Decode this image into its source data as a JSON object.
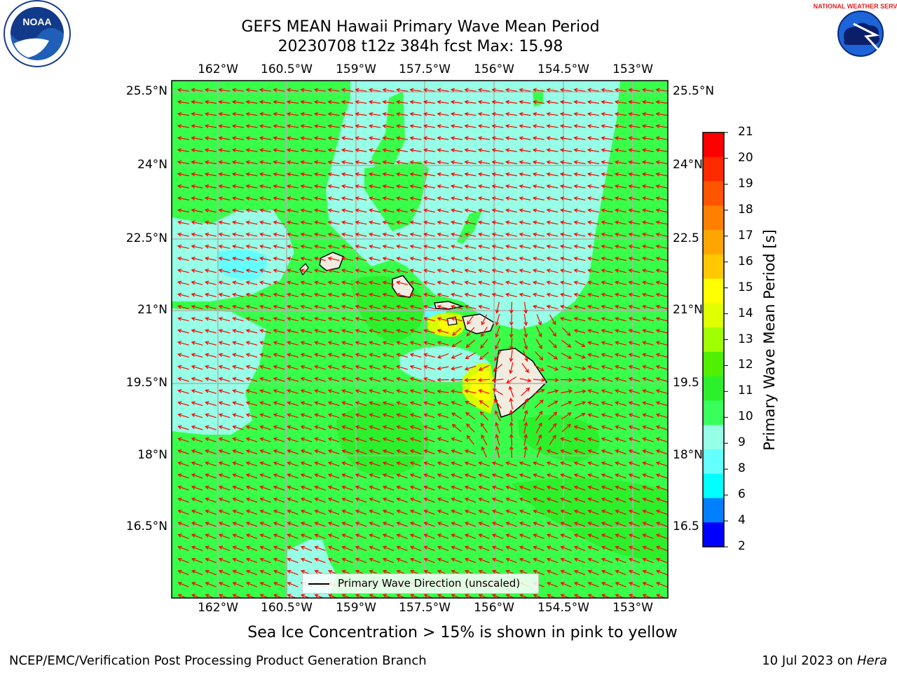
{
  "title": {
    "line1": "GEFS MEAN Hawaii Primary Wave Mean Period",
    "line2": "20230708 t12z 384h fcst   Max: 15.98"
  },
  "axes": {
    "lon_ticks": [
      "162°W",
      "160.5°W",
      "159°W",
      "157.5°W",
      "156°W",
      "154.5°W",
      "153°W"
    ],
    "lat_ticks": [
      "25.5°N",
      "24°N",
      "22.5°N",
      "21°N",
      "19.5°N",
      "18°N",
      "16.5°N"
    ],
    "lat_ticks_right": [
      "25.5°N",
      "24°N",
      "22.5",
      "21°N",
      "19.5",
      "18°N",
      "16.5"
    ]
  },
  "legend": {
    "label": "Primary Wave Direction (unscaled)"
  },
  "colorbar": {
    "label": "Primary Wave Mean Period [s]",
    "ticks": [
      "21",
      "20",
      "19",
      "18",
      "17",
      "16",
      "15",
      "14",
      "13",
      "12",
      "11",
      "10",
      "9",
      "8",
      "6",
      "4",
      "2"
    ],
    "colors": [
      "#ff0000",
      "#ff2a00",
      "#ff5500",
      "#ff7f00",
      "#ffa500",
      "#ffc800",
      "#ffff00",
      "#e0ff00",
      "#a0ff00",
      "#50f000",
      "#2df02d",
      "#38ff5c",
      "#96ffe6",
      "#64ffff",
      "#00ffff",
      "#0080ff",
      "#0000ff"
    ]
  },
  "bottom_note": "Sea Ice Concentration > 15% is shown in pink to yellow",
  "footer": {
    "left": "NCEP/EMC/Verification Post Processing Product Generation Branch",
    "right_prefix": "10 Jul 2023 on ",
    "right_host": "Hera"
  },
  "logos": {
    "left": "NOAA",
    "right": "NATIONAL WEATHER SERVICE"
  },
  "map_colors": {
    "ocean_green": "#38ff4a",
    "cyan_light": "#96ffe6",
    "cyan_mid": "#64ffff",
    "green_dark": "#2df02d",
    "yellow": "#ffff00",
    "arrow": "#ff0000",
    "land": "#f0ece0"
  }
}
